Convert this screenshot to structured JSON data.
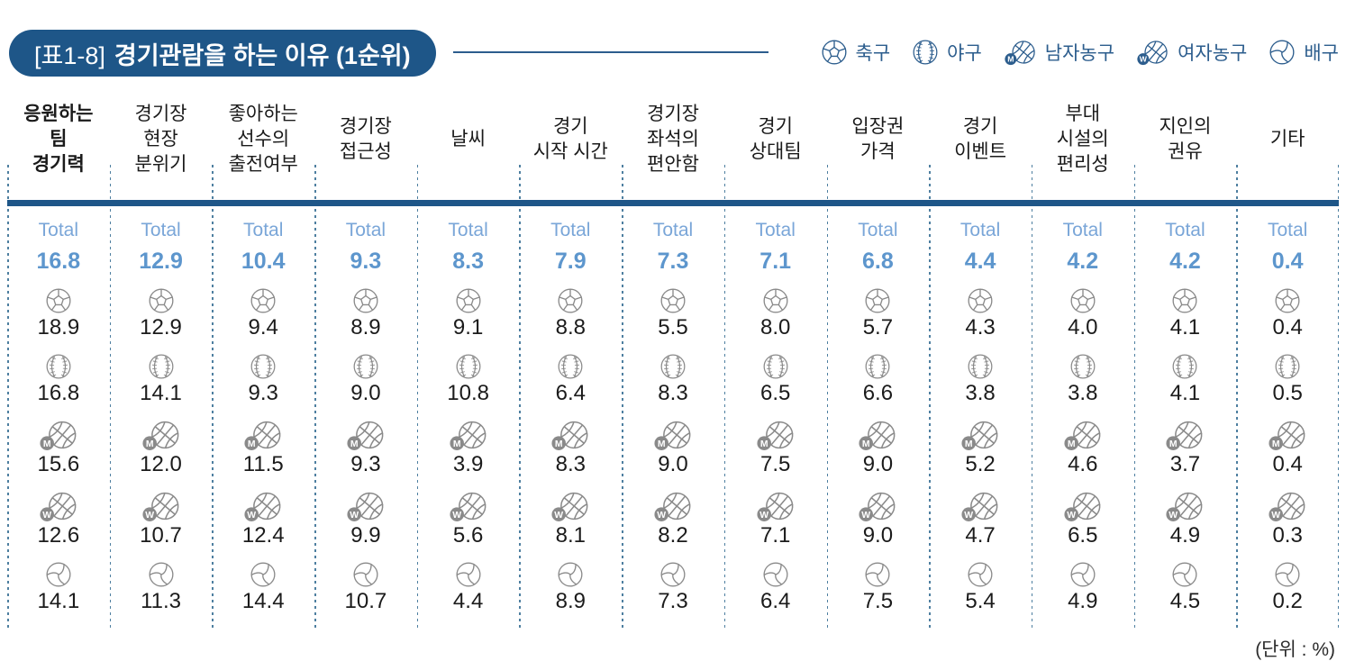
{
  "title": {
    "tag": "[표1-8]",
    "text": "경기관람을 하는 이유 (1순위)"
  },
  "legend": {
    "items": [
      {
        "icon": "soccer",
        "label": "축구"
      },
      {
        "icon": "baseball",
        "label": "야구"
      },
      {
        "icon": "basketball-m",
        "label": "남자농구"
      },
      {
        "icon": "basketball-w",
        "label": "여자농구"
      },
      {
        "icon": "volleyball",
        "label": "배구"
      }
    ]
  },
  "table": {
    "total_label": "Total",
    "headers": [
      {
        "lines": [
          "응원하는",
          "팀",
          "경기력"
        ],
        "bold": true
      },
      {
        "lines": [
          "경기장",
          "현장",
          "분위기"
        ],
        "bold": false
      },
      {
        "lines": [
          "좋아하는",
          "선수의",
          "출전여부"
        ],
        "bold": false
      },
      {
        "lines": [
          "경기장",
          "접근성"
        ],
        "bold": false
      },
      {
        "lines": [
          "날씨"
        ],
        "bold": false
      },
      {
        "lines": [
          "경기",
          "시작 시간"
        ],
        "bold": false
      },
      {
        "lines": [
          "경기장",
          "좌석의",
          "편안함"
        ],
        "bold": false
      },
      {
        "lines": [
          "경기",
          "상대팀"
        ],
        "bold": false
      },
      {
        "lines": [
          "입장권",
          "가격"
        ],
        "bold": false
      },
      {
        "lines": [
          "경기",
          "이벤트"
        ],
        "bold": false
      },
      {
        "lines": [
          "부대",
          "시설의",
          "편리성"
        ],
        "bold": false
      },
      {
        "lines": [
          "지인의",
          "권유"
        ],
        "bold": false
      },
      {
        "lines": [
          "기타"
        ],
        "bold": false
      }
    ]
  },
  "unit_note": "(단위 : %)",
  "colors": {
    "accent_dark_blue": "#1e5688",
    "legend_blue": "#2c5d8d",
    "total_label_blue": "#7aa6d8",
    "total_value_blue": "#5d96cd",
    "dashed_line_blue": "#4e7fa0",
    "icon_gray": "#8a8a8a",
    "value_text": "#1b1b1b"
  },
  "chart_data": {
    "type": "table",
    "title": "[표1-8] 경기관람을 하는 이유 (1순위)",
    "unit": "%",
    "categories": [
      "응원하는 팀 경기력",
      "경기장 현장 분위기",
      "좋아하는 선수의 출전여부",
      "경기장 접근성",
      "날씨",
      "경기 시작 시간",
      "경기장 좌석의 편안함",
      "경기 상대팀",
      "입장권 가격",
      "경기 이벤트",
      "부대 시설의 편리성",
      "지인의 권유",
      "기타"
    ],
    "series": [
      {
        "name": "Total",
        "icon": "total",
        "values": [
          16.8,
          12.9,
          10.4,
          9.3,
          8.3,
          7.9,
          7.3,
          7.1,
          6.8,
          4.4,
          4.2,
          4.2,
          0.4
        ]
      },
      {
        "name": "축구",
        "icon": "soccer",
        "values": [
          18.9,
          12.9,
          9.4,
          8.9,
          9.1,
          8.8,
          5.5,
          8.0,
          5.7,
          4.3,
          4.0,
          4.1,
          0.4
        ]
      },
      {
        "name": "야구",
        "icon": "baseball",
        "values": [
          16.8,
          14.1,
          9.3,
          9.0,
          10.8,
          6.4,
          8.3,
          6.5,
          6.6,
          3.8,
          3.8,
          4.1,
          0.5
        ]
      },
      {
        "name": "남자농구",
        "icon": "basketball-m",
        "values": [
          15.6,
          12.0,
          11.5,
          9.3,
          3.9,
          8.3,
          9.0,
          7.5,
          9.0,
          5.2,
          4.6,
          3.7,
          0.4
        ]
      },
      {
        "name": "여자농구",
        "icon": "basketball-w",
        "values": [
          12.6,
          10.7,
          12.4,
          9.9,
          5.6,
          8.1,
          8.2,
          7.1,
          9.0,
          4.7,
          6.5,
          4.9,
          0.3
        ]
      },
      {
        "name": "배구",
        "icon": "volleyball",
        "values": [
          14.1,
          11.3,
          14.4,
          10.7,
          4.4,
          8.9,
          7.3,
          6.4,
          7.5,
          5.4,
          4.9,
          4.5,
          0.2
        ]
      }
    ]
  }
}
